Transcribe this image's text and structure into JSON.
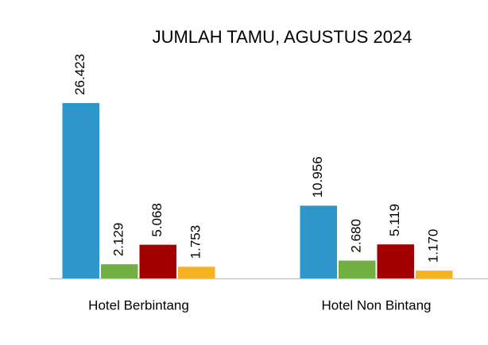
{
  "chart_data": {
    "type": "bar",
    "title": "JUMLAH TAMU, AGUSTUS 2024",
    "categories": [
      "Hotel Berbintang",
      "Hotel Non Bintang"
    ],
    "series": [
      {
        "color": "#2e96c8",
        "values": [
          26423,
          10956
        ],
        "value_labels": [
          "26.423",
          "10.956"
        ]
      },
      {
        "color": "#72b043",
        "values": [
          2129,
          2680
        ],
        "value_labels": [
          "2.129",
          "2.680"
        ]
      },
      {
        "color": "#a30000",
        "values": [
          5068,
          5119
        ],
        "value_labels": [
          "5.068",
          "5.119"
        ]
      },
      {
        "color": "#f5b223",
        "values": [
          1753,
          1170
        ],
        "value_labels": [
          "1.753",
          "1.170"
        ]
      }
    ],
    "ylim": [
      0,
      30000
    ]
  }
}
